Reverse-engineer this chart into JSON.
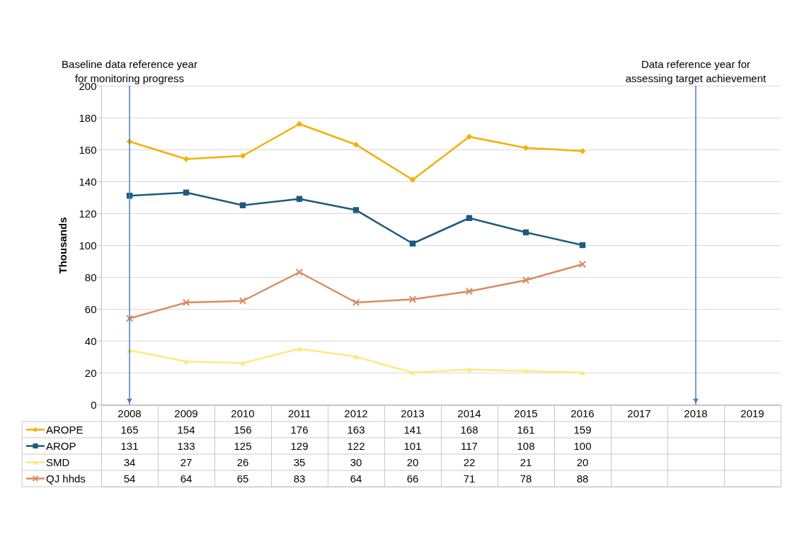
{
  "chart_data": {
    "type": "line",
    "ylabel": "Thousands",
    "categories": [
      "2008",
      "2009",
      "2010",
      "2011",
      "2012",
      "2013",
      "2014",
      "2015",
      "2016",
      "2017",
      "2018",
      "2019"
    ],
    "series": [
      {
        "name": "AROPE",
        "color": "#f5b000",
        "marker": "diamond",
        "values": [
          165,
          154,
          156,
          176,
          163,
          141,
          168,
          161,
          159,
          null,
          null,
          null
        ]
      },
      {
        "name": "AROP",
        "color": "#1d5a80",
        "marker": "square",
        "values": [
          131,
          133,
          125,
          129,
          122,
          101,
          117,
          108,
          100,
          null,
          null,
          null
        ]
      },
      {
        "name": "SMD",
        "color": "#ffe882",
        "marker": "triangle",
        "values": [
          34,
          27,
          26,
          35,
          30,
          20,
          22,
          21,
          20,
          null,
          null,
          null
        ]
      },
      {
        "name": "QJ hhds",
        "color": "#d98b62",
        "marker": "cross",
        "values": [
          54,
          64,
          65,
          83,
          64,
          66,
          71,
          78,
          88,
          null,
          null,
          null
        ]
      }
    ],
    "ylim": [
      0,
      200
    ],
    "yticks": [
      0,
      20,
      40,
      60,
      80,
      100,
      120,
      140,
      160,
      180,
      200
    ],
    "grid": "y",
    "legend": "bottom left",
    "data_labels": true,
    "ref_lines": [
      {
        "axis": "x",
        "value": "2008",
        "label": "Baseline data reference year\nfor monitoring progress",
        "color": "#4a7ebb"
      },
      {
        "axis": "x",
        "value": "2018",
        "label": "Data reference year for\nassessing target achievement",
        "color": "#4a7ebb"
      }
    ]
  }
}
